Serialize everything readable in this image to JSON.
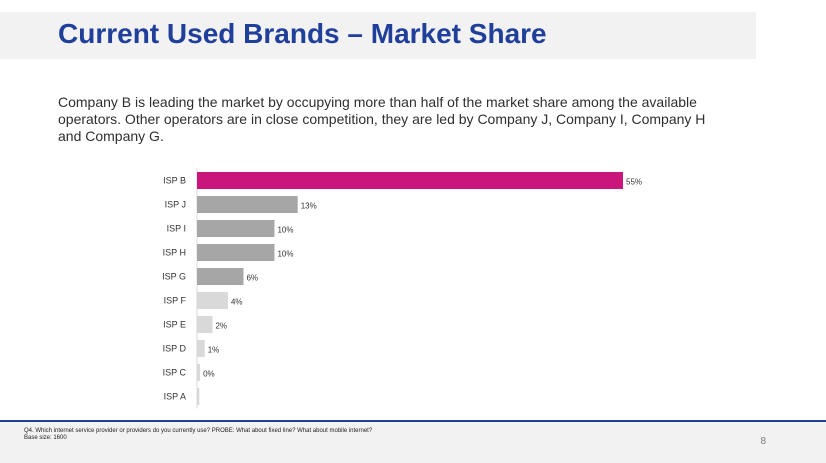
{
  "slide": {
    "title": "Current Used Brands – Market Share",
    "summary": "Company B is leading the market by occupying more than half of the market share among the available operators. Other operators are in close competition, they are led by Company J, Company I, Company H and Company G.",
    "footnote": {
      "question": "Q4. Which internet service provider or providers do you currently use? PROBE: What about fixed line? What about mobile internet?",
      "base": "Base size: 1600"
    },
    "page_number": "8"
  },
  "chart_data": {
    "type": "bar",
    "orientation": "horizontal",
    "title": "",
    "xlabel": "",
    "ylabel": "",
    "xlim": [
      0,
      55
    ],
    "grid": false,
    "legend": "none",
    "categories": [
      "ISP B",
      "ISP J",
      "ISP I",
      "ISP H",
      "ISP G",
      "ISP F",
      "ISP E",
      "ISP D",
      "ISP C",
      "ISP A"
    ],
    "values": [
      55,
      13,
      10,
      10,
      6,
      4,
      2,
      1,
      0.4,
      0.3
    ],
    "value_labels": [
      "55%",
      "13%",
      "10%",
      "10%",
      "6%",
      "4%",
      "2%",
      "1%",
      "0%",
      ""
    ],
    "colors": [
      "#c9157c",
      "#a6a6a6",
      "#a6a6a6",
      "#a6a6a6",
      "#a6a6a6",
      "#d9d9d9",
      "#d9d9d9",
      "#d9d9d9",
      "#d9d9d9",
      "#d9d9d9"
    ]
  }
}
